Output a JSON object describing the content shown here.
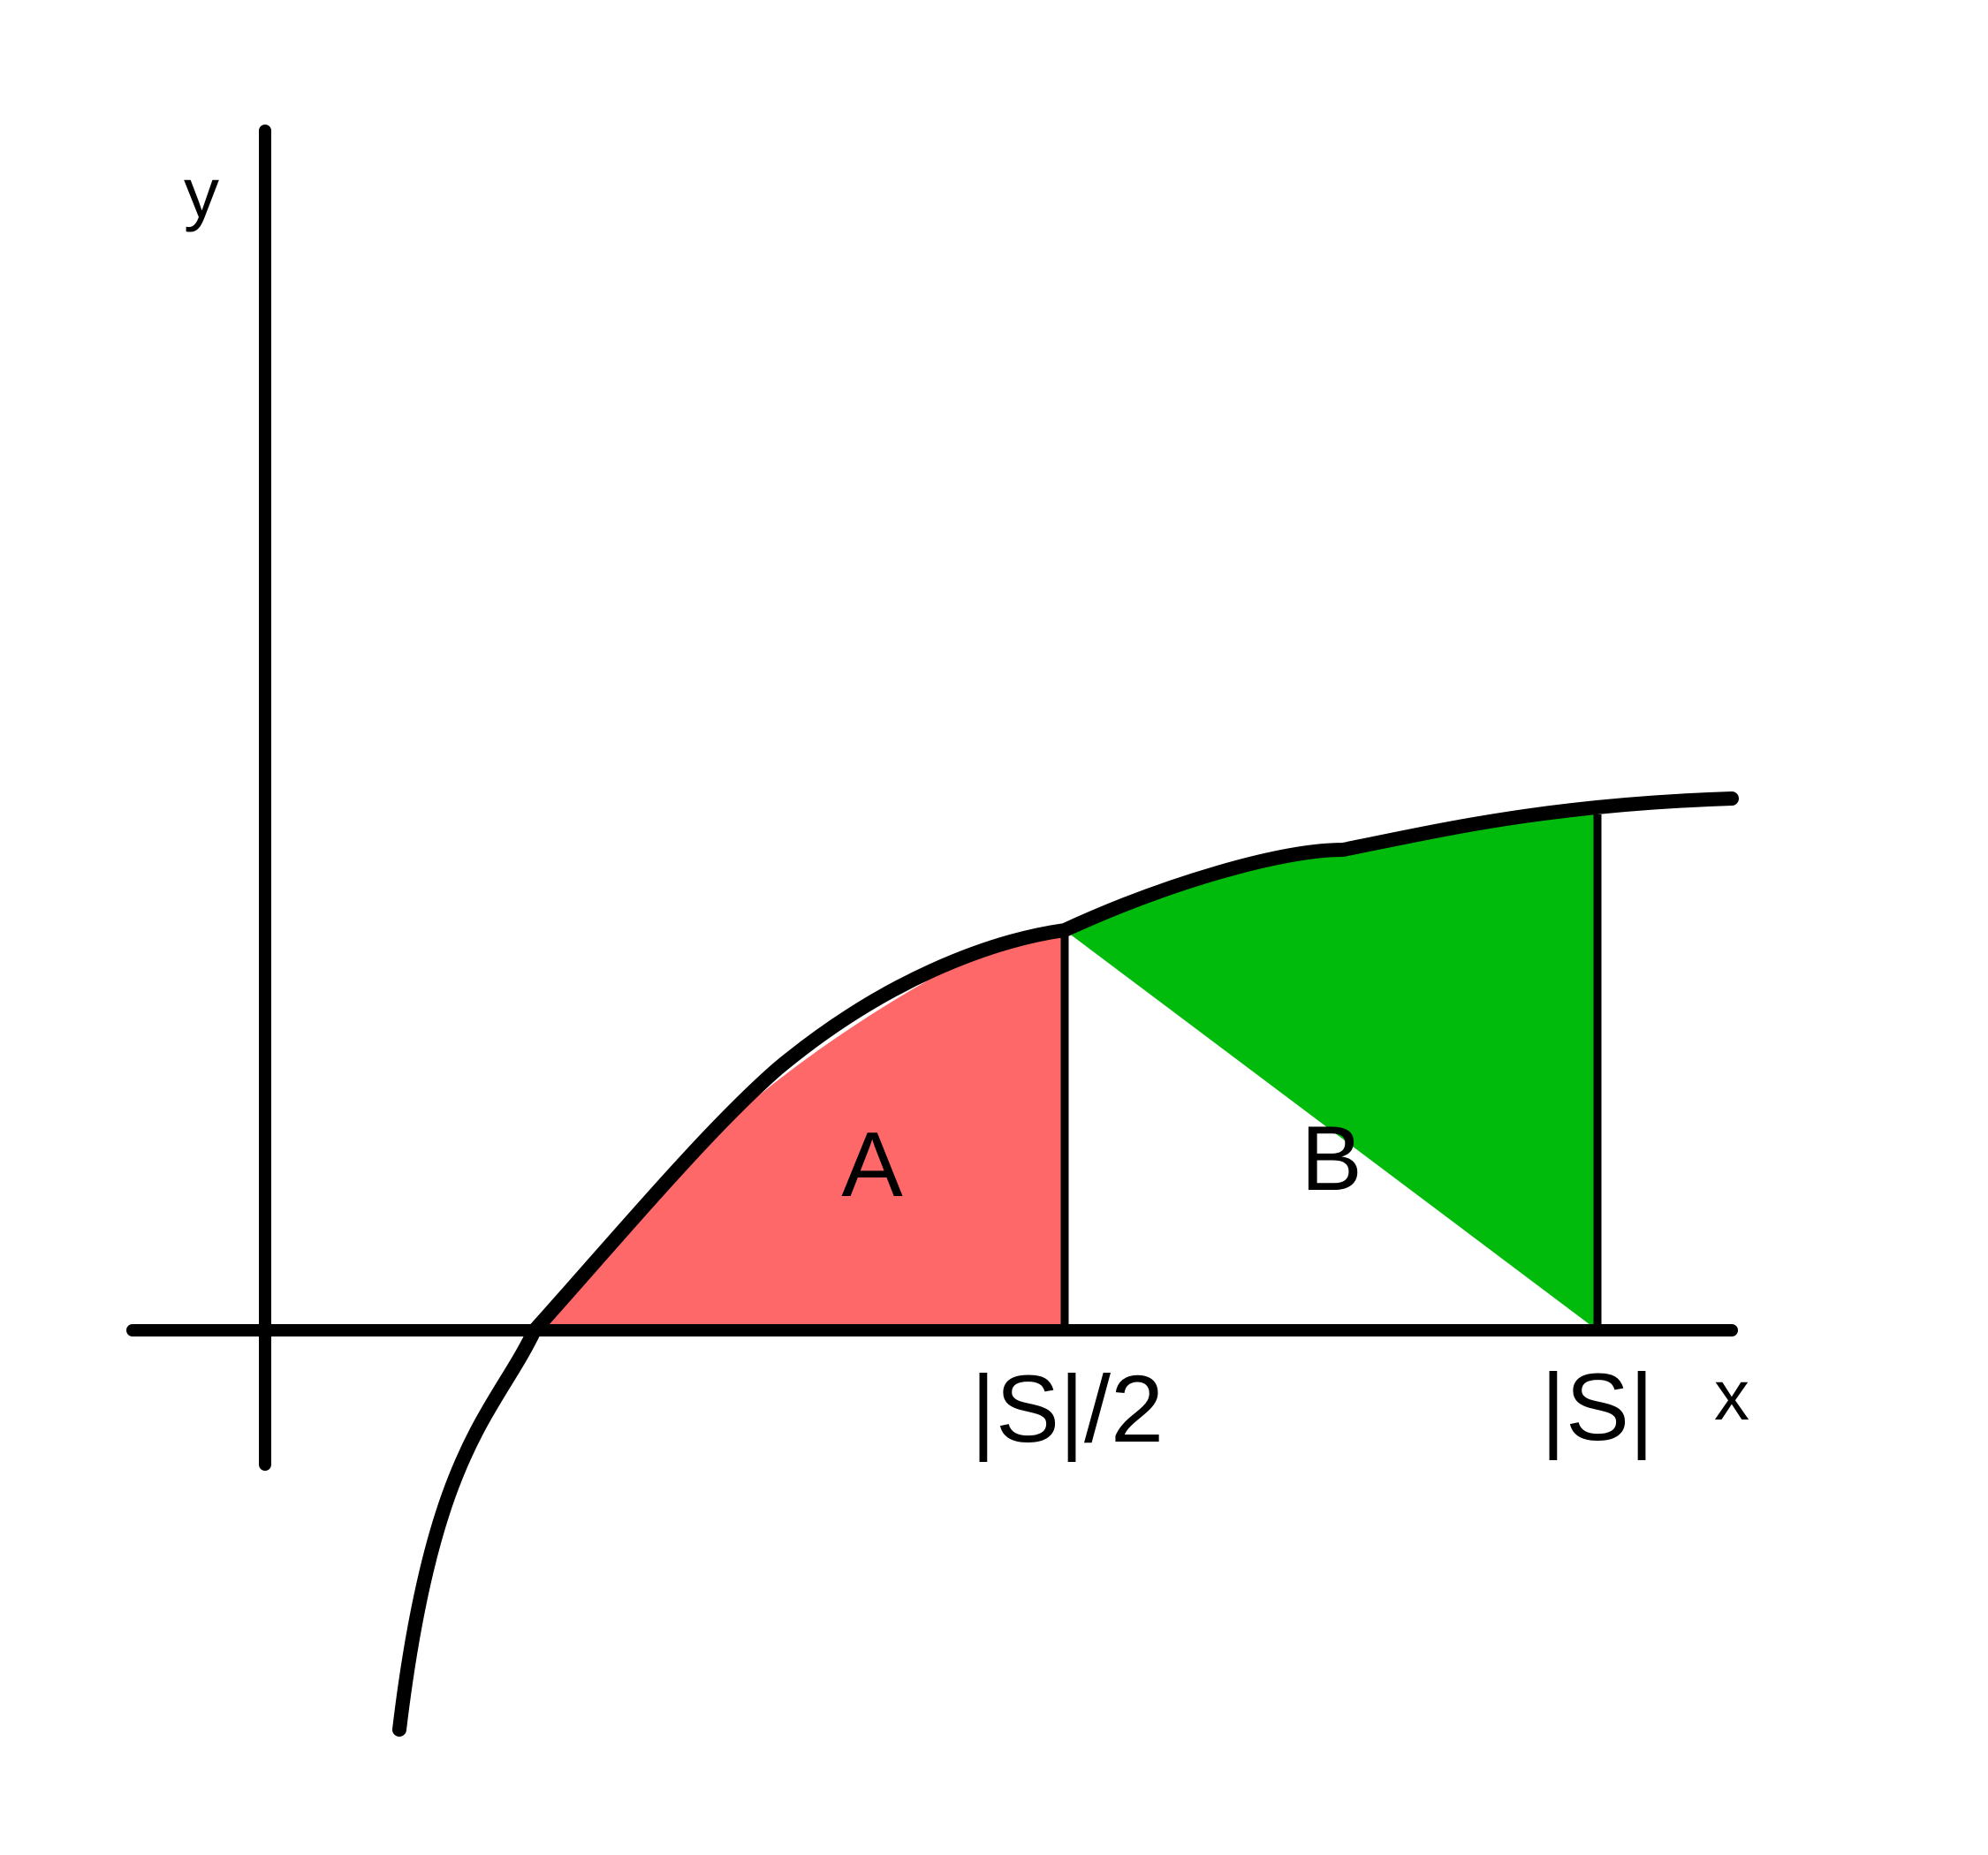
{
  "axes": {
    "x_label": "x",
    "y_label": "y"
  },
  "ticks": {
    "half": "|S|/2",
    "full": "|S|"
  },
  "regions": {
    "a": {
      "label": "A",
      "color": "#ff6868"
    },
    "b": {
      "label": "B",
      "color": "#00bb0b"
    }
  }
}
